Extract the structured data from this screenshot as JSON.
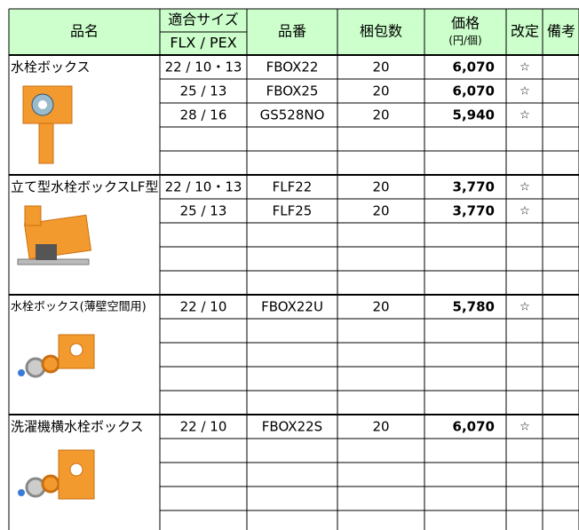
{
  "header": {
    "name": "品名",
    "size": "適合サイズ",
    "size_sub": "FLX / PEX",
    "code": "品番",
    "qty": "梱包数",
    "price": "価格",
    "price_unit": "(円/個)",
    "revised": "改定",
    "notes": "備考"
  },
  "sections": [
    {
      "name": "水栓ボックス",
      "rows": [
        {
          "size": "22 / 10・13",
          "code": "FBOX22",
          "qty": "20",
          "price": "6,070",
          "revised": "☆"
        },
        {
          "size": "25 / 13",
          "code": "FBOX25",
          "qty": "20",
          "price": "6,070",
          "revised": "☆"
        },
        {
          "size": "28 / 16",
          "code": "GS528NO",
          "qty": "20",
          "price": "5,940",
          "revised": "☆"
        }
      ]
    },
    {
      "name": "立て型水栓ボックスLF型",
      "rows": [
        {
          "size": "22 / 10・13",
          "code": "FLF22",
          "qty": "20",
          "price": "3,770",
          "revised": "☆"
        },
        {
          "size": "25 / 13",
          "code": "FLF25",
          "qty": "20",
          "price": "3,770",
          "revised": "☆"
        }
      ]
    },
    {
      "name": "水栓ボックス(薄壁空間用)",
      "rows": [
        {
          "size": "22 / 10",
          "code": "FBOX22U",
          "qty": "20",
          "price": "5,780",
          "revised": "☆"
        }
      ]
    },
    {
      "name": "洗濯機横水栓ボックス",
      "rows": [
        {
          "size": "22 / 10",
          "code": "FBOX22S",
          "qty": "20",
          "price": "6,070",
          "revised": "☆"
        }
      ]
    }
  ]
}
